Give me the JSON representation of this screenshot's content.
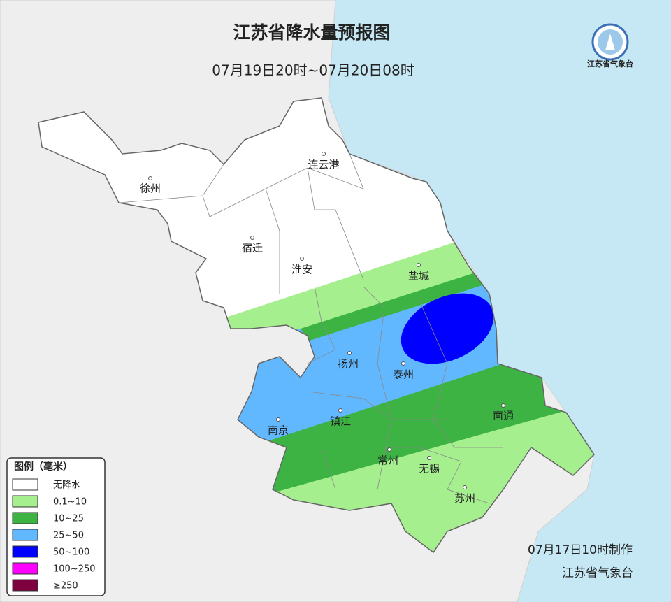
{
  "header": {
    "title": "江苏省降水量预报图",
    "subtitle": "07月19日20时~07月20日08时",
    "logo_text": "江苏省气象台"
  },
  "cities": [
    {
      "label": "徐州"
    },
    {
      "label": "连云港"
    },
    {
      "label": "宿迁"
    },
    {
      "label": "淮安"
    },
    {
      "label": "盐城"
    },
    {
      "label": "扬州"
    },
    {
      "label": "泰州"
    },
    {
      "label": "南京"
    },
    {
      "label": "镇江"
    },
    {
      "label": "南通"
    },
    {
      "label": "常州"
    },
    {
      "label": "无锡"
    },
    {
      "label": "苏州"
    }
  ],
  "legend": {
    "title": "图例（毫米）",
    "items": [
      {
        "label": "无降水",
        "color": "#ffffff"
      },
      {
        "label": "0.1~10",
        "color": "#a6ef8f"
      },
      {
        "label": "10~25",
        "color": "#3db344"
      },
      {
        "label": "25~50",
        "color": "#62b8ff"
      },
      {
        "label": "50~100",
        "color": "#0000fe"
      },
      {
        "label": "100~250",
        "color": "#fe00fe"
      },
      {
        "label": "≥250",
        "color": "#7f003f"
      }
    ]
  },
  "footer": {
    "issued": "07月17日10时制作",
    "issuer": "江苏省气象台"
  }
}
